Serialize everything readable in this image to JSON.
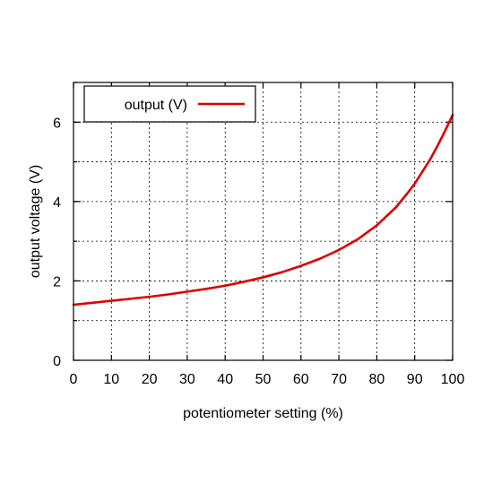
{
  "chart_data": {
    "type": "line",
    "xlabel": "potentiometer setting (%)",
    "ylabel": "output voltage (V)",
    "xlim": [
      0,
      100
    ],
    "ylim": [
      0,
      7
    ],
    "x_ticks": [
      0,
      10,
      20,
      30,
      40,
      50,
      60,
      70,
      80,
      90,
      100
    ],
    "x_tick_labels": [
      "0",
      "10",
      "20",
      "30",
      "40",
      "50",
      "60",
      "70",
      "80",
      "90",
      "100"
    ],
    "y_ticks": [
      0,
      2,
      4,
      6
    ],
    "y_tick_labels": [
      "0",
      "2",
      "4",
      "6"
    ],
    "y_grid": [
      1,
      2,
      3,
      4,
      5,
      6,
      7
    ],
    "grid": true,
    "legend_position": "top-left",
    "series": [
      {
        "name": "output (V)",
        "color": "#dd0000",
        "x": [
          0,
          5,
          10,
          15,
          20,
          25,
          30,
          35,
          40,
          45,
          50,
          55,
          60,
          65,
          70,
          75,
          80,
          85,
          88,
          90,
          92,
          94,
          96,
          98,
          100
        ],
        "y": [
          1.4,
          1.45,
          1.5,
          1.55,
          1.6,
          1.66,
          1.73,
          1.8,
          1.88,
          1.98,
          2.09,
          2.22,
          2.38,
          2.56,
          2.78,
          3.05,
          3.4,
          3.85,
          4.2,
          4.45,
          4.75,
          5.05,
          5.4,
          5.78,
          6.18
        ]
      }
    ]
  }
}
